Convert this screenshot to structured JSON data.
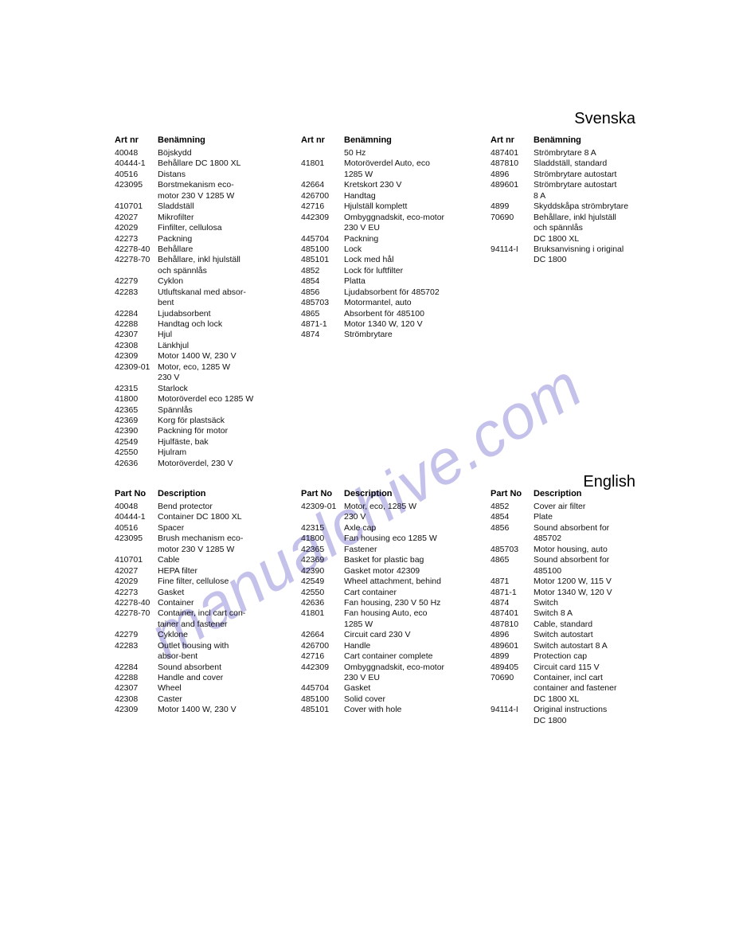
{
  "watermark_text": "manualchive.com",
  "labels": {
    "svenska": "Svenska",
    "english": "English"
  },
  "headers": {
    "sv": {
      "num": "Art nr",
      "desc": "Benämning"
    },
    "en": {
      "num": "Part No",
      "desc": "Description"
    }
  },
  "sv": {
    "col1": [
      [
        "40048",
        "Böjskydd"
      ],
      [
        "40444-1",
        "Behållare DC 1800 XL"
      ],
      [
        "40516",
        "Distans"
      ],
      [
        "423095",
        "Borstmekanism eco-"
      ],
      [
        "",
        "motor 230 V 1285 W"
      ],
      [
        "410701",
        "Sladdställ"
      ],
      [
        "42027",
        "Mikrofilter"
      ],
      [
        "42029",
        "Finfilter, cellulosa"
      ],
      [
        "42273",
        "Packning"
      ],
      [
        "42278-40",
        "Behållare"
      ],
      [
        "42278-70",
        "Behållare, inkl hjulställ"
      ],
      [
        "",
        "och spännlås"
      ],
      [
        "42279",
        "Cyklon"
      ],
      [
        "42283",
        "Utluftskanal med absor-"
      ],
      [
        "",
        "bent"
      ],
      [
        "42284",
        "Ljudabsorbent"
      ],
      [
        "42288",
        "Handtag och lock"
      ],
      [
        "42307",
        "Hjul"
      ],
      [
        "42308",
        "Länkhjul"
      ],
      [
        "42309",
        "Motor 1400 W, 230 V"
      ],
      [
        "42309-01",
        "Motor, eco, 1285 W"
      ],
      [
        "",
        "230 V"
      ],
      [
        "42315",
        "Starlock"
      ],
      [
        "41800",
        "Motoröverdel eco 1285 W"
      ],
      [
        "42365",
        "Spännlås"
      ],
      [
        "42369",
        "Korg för plastsäck"
      ],
      [
        "42390",
        "Packning för motor"
      ],
      [
        "42549",
        "Hjulfäste, bak"
      ],
      [
        "42550",
        "Hjulram"
      ],
      [
        "42636",
        "Motoröverdel, 230 V"
      ]
    ],
    "col2": [
      [
        "",
        "50 Hz"
      ],
      [
        "41801",
        "Motoröverdel Auto, eco"
      ],
      [
        "",
        "1285 W"
      ],
      [
        "42664",
        "Kretskort 230 V"
      ],
      [
        "426700",
        "Handtag"
      ],
      [
        "42716",
        "Hjulställ komplett"
      ],
      [
        "442309",
        "Ombyggnadskit, eco-motor"
      ],
      [
        "",
        "230 V EU"
      ],
      [
        "445704",
        "Packning"
      ],
      [
        "485100",
        "Lock"
      ],
      [
        "485101",
        "Lock med hål"
      ],
      [
        "4852",
        "Lock för luftfilter"
      ],
      [
        "4854",
        "Platta"
      ],
      [
        "4856",
        "Ljudabsorbent för 485702"
      ],
      [
        "485703",
        "Motormantel, auto"
      ],
      [
        "4865",
        "Absorbent för 485100"
      ],
      [
        "4871-1",
        "Motor 1340 W, 120 V"
      ],
      [
        "4874",
        "Strömbrytare"
      ]
    ],
    "col3": [
      [
        "487401",
        "Strömbrytare 8 A"
      ],
      [
        "487810",
        "Sladdställ, standard"
      ],
      [
        "4896",
        "Strömbrytare autostart"
      ],
      [
        "489601",
        "Strömbrytare autostart"
      ],
      [
        "",
        "8 A"
      ],
      [
        "4899",
        "Skyddskåpa strömbrytare"
      ],
      [
        "70690",
        "Behållare, inkl hjulställ"
      ],
      [
        "",
        "och spännlås"
      ],
      [
        "",
        "DC 1800 XL"
      ],
      [
        "94114-I",
        "Bruksanvisning i original"
      ],
      [
        "",
        "DC 1800"
      ]
    ]
  },
  "en": {
    "col1": [
      [
        "40048",
        "Bend protector"
      ],
      [
        "40444-1",
        "Container DC 1800 XL"
      ],
      [
        "40516",
        "Spacer"
      ],
      [
        "423095",
        "Brush mechanism eco-"
      ],
      [
        "",
        "motor 230 V 1285 W"
      ],
      [
        "410701",
        "Cable"
      ],
      [
        "42027",
        "HEPA filter"
      ],
      [
        "42029",
        "Fine filter, cellulose"
      ],
      [
        "42273",
        "Gasket"
      ],
      [
        "42278-40",
        "Container"
      ],
      [
        "42278-70",
        "Container, incl cart con-"
      ],
      [
        "",
        "tainer and fastener"
      ],
      [
        "42279",
        "Cyklone"
      ],
      [
        "42283",
        "Outlet housing with"
      ],
      [
        "",
        "absor-bent"
      ],
      [
        "42284",
        "Sound absorbent"
      ],
      [
        "42288",
        "Handle and cover"
      ],
      [
        "42307",
        "Wheel"
      ],
      [
        "42308",
        "Caster"
      ],
      [
        "42309",
        "Motor 1400 W, 230 V"
      ]
    ],
    "col2": [
      [
        "42309-01",
        "Motor, eco, 1285 W"
      ],
      [
        "",
        "230 V"
      ],
      [
        "42315",
        "Axle cap"
      ],
      [
        "41800",
        "Fan housing eco 1285 W"
      ],
      [
        "42365",
        "Fastener"
      ],
      [
        "42369",
        "Basket for plastic bag"
      ],
      [
        "42390",
        "Gasket motor 42309"
      ],
      [
        "42549",
        "Wheel attachment, behind"
      ],
      [
        "42550",
        "Cart container"
      ],
      [
        "42636",
        "Fan housing, 230 V 50 Hz"
      ],
      [
        "41801",
        "Fan housing Auto, eco"
      ],
      [
        "",
        "1285 W"
      ],
      [
        "42664",
        "Circuit card 230 V"
      ],
      [
        "426700",
        "Handle"
      ],
      [
        "42716",
        "Cart container complete"
      ],
      [
        "442309",
        "Ombyggnadskit, eco-motor"
      ],
      [
        "",
        "230 V EU"
      ],
      [
        "445704",
        "Gasket"
      ],
      [
        "485100",
        "Solid cover"
      ],
      [
        "485101",
        "Cover with hole"
      ]
    ],
    "col3": [
      [
        "4852",
        "Cover air filter"
      ],
      [
        "4854",
        "Plate"
      ],
      [
        "4856",
        "Sound absorbent for"
      ],
      [
        "",
        "485702"
      ],
      [
        "485703",
        "Motor housing, auto"
      ],
      [
        "4865",
        "Sound absorbent for"
      ],
      [
        "",
        "485100"
      ],
      [
        "4871",
        "Motor 1200 W, 115 V"
      ],
      [
        "4871-1",
        "Motor 1340 W, 120 V"
      ],
      [
        "4874",
        "Switch"
      ],
      [
        "487401",
        "Switch 8 A"
      ],
      [
        "487810",
        "Cable, standard"
      ],
      [
        "4896",
        "Switch autostart"
      ],
      [
        "489601",
        "Switch autostart 8 A"
      ],
      [
        "4899",
        "Protection cap"
      ],
      [
        "489405",
        "Circuit card 115 V"
      ],
      [
        "70690",
        "Container, incl cart"
      ],
      [
        "",
        "container and fastener"
      ],
      [
        "",
        "DC 1800 XL"
      ],
      [
        "94114-I",
        "Original instructions"
      ],
      [
        "",
        "DC 1800"
      ]
    ]
  }
}
